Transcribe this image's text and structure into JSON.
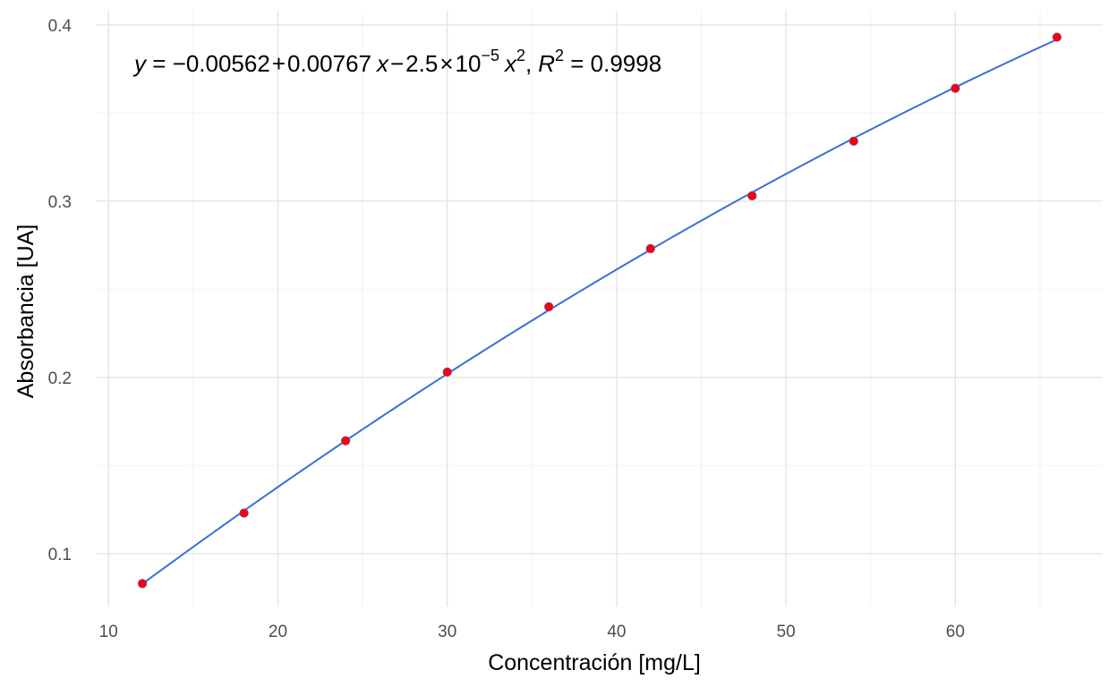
{
  "chart_data": {
    "type": "scatter",
    "xlabel": "Concentración [mg/L]",
    "ylabel": "Absorbancia [UA]",
    "xlim": [
      9.3,
      68.7
    ],
    "ylim": [
      0.07,
      0.408
    ],
    "x_ticks": [
      10,
      20,
      30,
      40,
      50,
      60
    ],
    "x_minor_ticks": [
      15,
      25,
      35,
      45,
      55,
      65
    ],
    "y_ticks": [
      0.1,
      0.2,
      0.3,
      0.4
    ],
    "y_minor_ticks": [
      0.15,
      0.25,
      0.35
    ],
    "grid": true,
    "points": {
      "x": [
        12,
        18,
        24,
        30,
        36,
        42,
        48,
        54,
        60,
        66
      ],
      "y": [
        0.083,
        0.123,
        0.164,
        0.203,
        0.24,
        0.273,
        0.303,
        0.334,
        0.364,
        0.393
      ],
      "color": "#ff0000",
      "edge_color": "#7b3b8a"
    },
    "fit": {
      "type": "quadratic",
      "coefficients": [
        -0.00562,
        0.00767,
        -2.5e-05
      ],
      "x_range": [
        12,
        66
      ],
      "color": "#3b6fd6"
    },
    "annotation": {
      "y_sym": "y",
      "eq_sign": " = ",
      "minus": "−",
      "c0": "0.00562",
      "plus": "+",
      "c1": "0.00767",
      "x_sym": "x",
      "c2": "2.5",
      "times": "×",
      "base": "10",
      "exp": "−5",
      "sq": "2",
      "comma": ",",
      "r_sym": "R",
      "r_exp": "2",
      "r_value": "0.9998"
    }
  }
}
